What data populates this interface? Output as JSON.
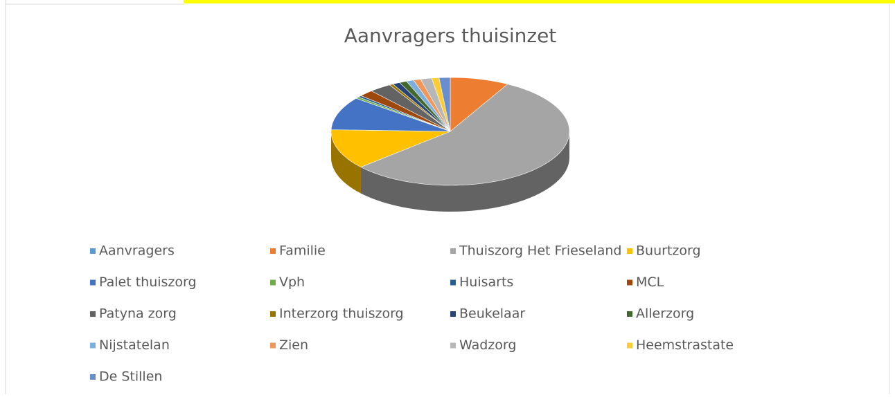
{
  "chart_data": {
    "type": "pie",
    "title": "Aanvragers thuisinzet",
    "categories": [
      "Aanvragers",
      "Familie",
      "Thuiszorg Het Frieseland",
      "Buurtzorg",
      "Palet thuiszorg",
      "Vph",
      "Huisarts",
      "MCL",
      "Patyna zorg",
      "Interzorg thuiszorg",
      "Beukelaar",
      "Allerzorg",
      "Nijstatelan",
      "Zien",
      "Wadzorg",
      "Heemstrastate",
      "De Stillen"
    ],
    "values": [
      0,
      8,
      55.5,
      12,
      10,
      0.5,
      0.5,
      2,
      3,
      0.5,
      1,
      1,
      1,
      1,
      1.5,
      1,
      1.5
    ],
    "colors": [
      "#5b9bd5",
      "#ed7d31",
      "#a5a5a5",
      "#ffc000",
      "#4472c4",
      "#70ad47",
      "#255e91",
      "#9e480e",
      "#636363",
      "#997300",
      "#264478",
      "#43682b",
      "#7cafdd",
      "#f1975a",
      "#b7b7b7",
      "#ffcd33",
      "#698ed0"
    ],
    "legend": "bottom"
  }
}
